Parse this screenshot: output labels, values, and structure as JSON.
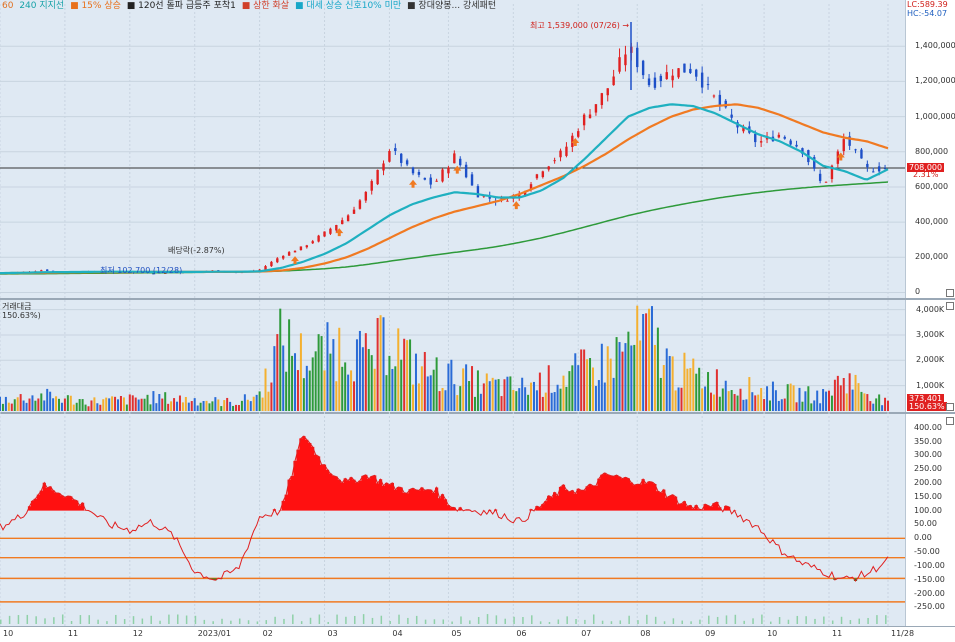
{
  "chart_data": {
    "type": "line",
    "legend": [
      "60",
      "240  지지선",
      "■ 15% 상승",
      "■ 120선 돌파 급등주 포착1",
      "■ 상한 화살",
      "■ 대세 상승 신호10% 미만",
      "■ 장대양봉... 강세패턴"
    ],
    "lc_label": "LC:589.39",
    "hc_label": "HC:-54.07",
    "high_annotation": "최고 1,539,000 (07/26) →",
    "dividend_annotation": "배당락(-2.87%)",
    "low_annotation": "최저 102,700 (12/28)",
    "change_annotation": "2.31%",
    "current_price_label": "708,000",
    "current_volume_label": "373,401",
    "current_volume_ratio_label": "150.63%",
    "volume_title": "거래대금",
    "volume_ratio": "150.63%)",
    "price_axis": {
      "ticks": [
        "1,400,000",
        "1,200,000",
        "1,000,000",
        "800,000",
        "600,000",
        "400,000",
        "200,000",
        "0"
      ],
      "values": [
        1400000,
        1200000,
        1000000,
        800000,
        600000,
        400000,
        200000,
        0
      ],
      "ylim": [
        -20000,
        1640000
      ]
    },
    "volume_axis": {
      "ticks": [
        "4,000K",
        "3,000K",
        "2,000K",
        "1,000K"
      ],
      "values": [
        4000,
        3000,
        2000,
        1000
      ],
      "ylim": [
        0,
        4300
      ]
    },
    "oscillator_axis": {
      "ticks": [
        "400.00",
        "350.00",
        "300.00",
        "250.00",
        "200.00",
        "150.00",
        "100.00",
        "50.00",
        "0.00",
        "-50.00",
        "-100.00",
        "-150.00",
        "-200.00",
        "-250.00"
      ],
      "values": [
        400,
        350,
        300,
        250,
        200,
        150,
        100,
        50,
        0,
        -50,
        -100,
        -150,
        -200,
        -250
      ],
      "ylim": [
        -310,
        435
      ],
      "reference_lines": [
        0,
        -70,
        -145,
        -230
      ]
    },
    "x_ticks": [
      "10",
      "11",
      "12",
      "2023/01",
      "02",
      "03",
      "04",
      "05",
      "06",
      "07",
      "08",
      "09",
      "10",
      "11",
      "11/28"
    ],
    "x_tick_index": [
      0,
      22,
      44,
      66,
      88,
      110,
      132,
      152,
      174,
      196,
      216,
      238,
      259,
      281,
      301
    ],
    "price_close_monthly": [
      110000,
      115000,
      128000,
      110000,
      118000,
      120000,
      115000,
      110000,
      115000,
      120000,
      125000,
      112000,
      130000,
      210000,
      260000,
      340000,
      430000,
      580000,
      820000,
      680000,
      610000,
      780000,
      560000,
      520000,
      560000,
      700000,
      800000,
      1000000,
      1150000,
      1400000,
      1180000,
      1260000,
      1270000,
      1100000,
      950000,
      850000,
      900000,
      820000,
      600000,
      880000,
      700000,
      708000
    ],
    "ma60": [
      110000,
      112000,
      115000,
      116000,
      117000,
      118000,
      118000,
      117000,
      117000,
      117000,
      118000,
      118000,
      120000,
      140000,
      175000,
      220000,
      280000,
      360000,
      440000,
      500000,
      540000,
      570000,
      560000,
      540000,
      540000,
      580000,
      650000,
      760000,
      880000,
      1000000,
      1050000,
      1070000,
      1060000,
      1020000,
      960000,
      900000,
      860000,
      800000,
      720000,
      690000,
      640000,
      700000
    ],
    "ma120": [
      110000,
      111000,
      112000,
      114000,
      115000,
      116000,
      116000,
      117000,
      117000,
      117000,
      117000,
      118000,
      119000,
      125000,
      140000,
      165000,
      200000,
      250000,
      310000,
      370000,
      420000,
      460000,
      490000,
      520000,
      560000,
      610000,
      660000,
      720000,
      790000,
      870000,
      940000,
      1000000,
      1040000,
      1060000,
      1070000,
      1050000,
      1010000,
      960000,
      910000,
      880000,
      860000,
      820000
    ],
    "ma240": [
      105000,
      106000,
      107000,
      108000,
      109000,
      110000,
      111000,
      112000,
      113000,
      114000,
      115000,
      116000,
      118000,
      122000,
      128000,
      135000,
      145000,
      160000,
      178000,
      195000,
      212000,
      228000,
      244000,
      262000,
      285000,
      310000,
      340000,
      372000,
      405000,
      437000,
      465000,
      490000,
      513000,
      534000,
      552000,
      568000,
      582000,
      594000,
      604000,
      612000,
      620000,
      628000
    ],
    "oscillator_monthly": [
      40,
      80,
      190,
      160,
      110,
      50,
      30,
      60,
      10,
      -120,
      -150,
      -110,
      80,
      100,
      380,
      260,
      200,
      230,
      190,
      170,
      180,
      110,
      100,
      90,
      60,
      120,
      180,
      170,
      230,
      210,
      200,
      150,
      110,
      120,
      90,
      40,
      -40,
      -90,
      -120,
      -150,
      -130,
      -80
    ],
    "volume_monthly_k": [
      600,
      700,
      800,
      650,
      500,
      550,
      600,
      700,
      650,
      600,
      500,
      450,
      900,
      3800,
      2800,
      3000,
      3600,
      2600,
      4000,
      2500,
      2000,
      1800,
      1500,
      1300,
      1200,
      1500,
      1800,
      2200,
      2600,
      3400,
      4100,
      2200,
      1900,
      1600,
      1300,
      1100,
      1000,
      900,
      800,
      1800,
      1000,
      373
    ]
  }
}
